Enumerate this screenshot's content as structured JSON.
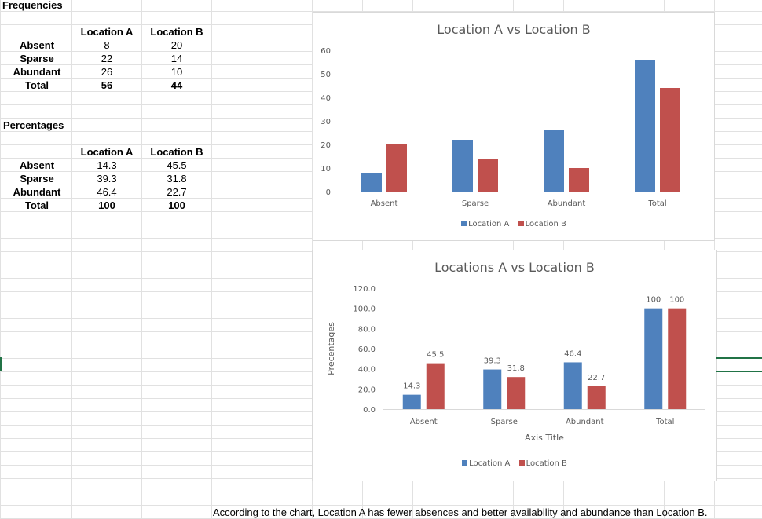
{
  "sheet": {
    "frequencies_heading": "Frequencies",
    "frequencies_heading_prefix": "Fr",
    "percentages_heading": "Percentages",
    "col_a": "Location A",
    "col_b": "Location B",
    "freq_rows": [
      {
        "label": "Absent",
        "a": "8",
        "b": "20"
      },
      {
        "label": "Sparse",
        "a": "22",
        "b": "14"
      },
      {
        "label": "Abundant",
        "a": "26",
        "b": "10"
      },
      {
        "label": "Total",
        "a": "56",
        "b": "44"
      }
    ],
    "pct_rows": [
      {
        "label": "Absent",
        "a": "14.3",
        "b": "45.5"
      },
      {
        "label": "Sparse",
        "a": "39.3",
        "b": "31.8"
      },
      {
        "label": "Abundant",
        "a": "46.4",
        "b": "22.7"
      },
      {
        "label": "Total",
        "a": "100",
        "b": "100"
      }
    ],
    "conclusion": "According to the chart, Location A has fewer absences and better availability and abundance than Location B."
  },
  "colors": {
    "series_a": "#4f81bd",
    "series_b": "#c0504d",
    "grid": "#d9d9d9",
    "axis_text": "#595959",
    "excel_green": "#217346"
  },
  "chart_data": [
    {
      "type": "bar",
      "title": "Location A vs Location B",
      "categories": [
        "Absent",
        "Sparse",
        "Abundant",
        "Total"
      ],
      "series": [
        {
          "name": "Location A",
          "values": [
            8,
            22,
            26,
            56
          ]
        },
        {
          "name": "Location B",
          "values": [
            20,
            14,
            10,
            44
          ]
        }
      ],
      "ylim": [
        0,
        60
      ],
      "yticks": [
        "0",
        "10",
        "20",
        "30",
        "40",
        "50",
        "60"
      ],
      "xlabel": "",
      "ylabel": "",
      "grid": false,
      "legend": "bottom"
    },
    {
      "type": "bar",
      "title": "Locations A vs Location B",
      "categories": [
        "Absent",
        "Sparse",
        "Abundant",
        "Total"
      ],
      "series": [
        {
          "name": "Location A",
          "values": [
            14.3,
            39.3,
            46.4,
            100
          ],
          "labels": [
            "14.3",
            "39.3",
            "46.4",
            "100"
          ]
        },
        {
          "name": "Location B",
          "values": [
            45.5,
            31.8,
            22.7,
            100
          ],
          "labels": [
            "45.5",
            "31.8",
            "22.7",
            "100"
          ]
        }
      ],
      "ylim": [
        0,
        120
      ],
      "yticks": [
        "0.0",
        "20.0",
        "40.0",
        "60.0",
        "80.0",
        "100.0",
        "120.0"
      ],
      "xlabel": "Axis Title",
      "ylabel": "Precentages",
      "grid": false,
      "legend": "bottom"
    }
  ]
}
